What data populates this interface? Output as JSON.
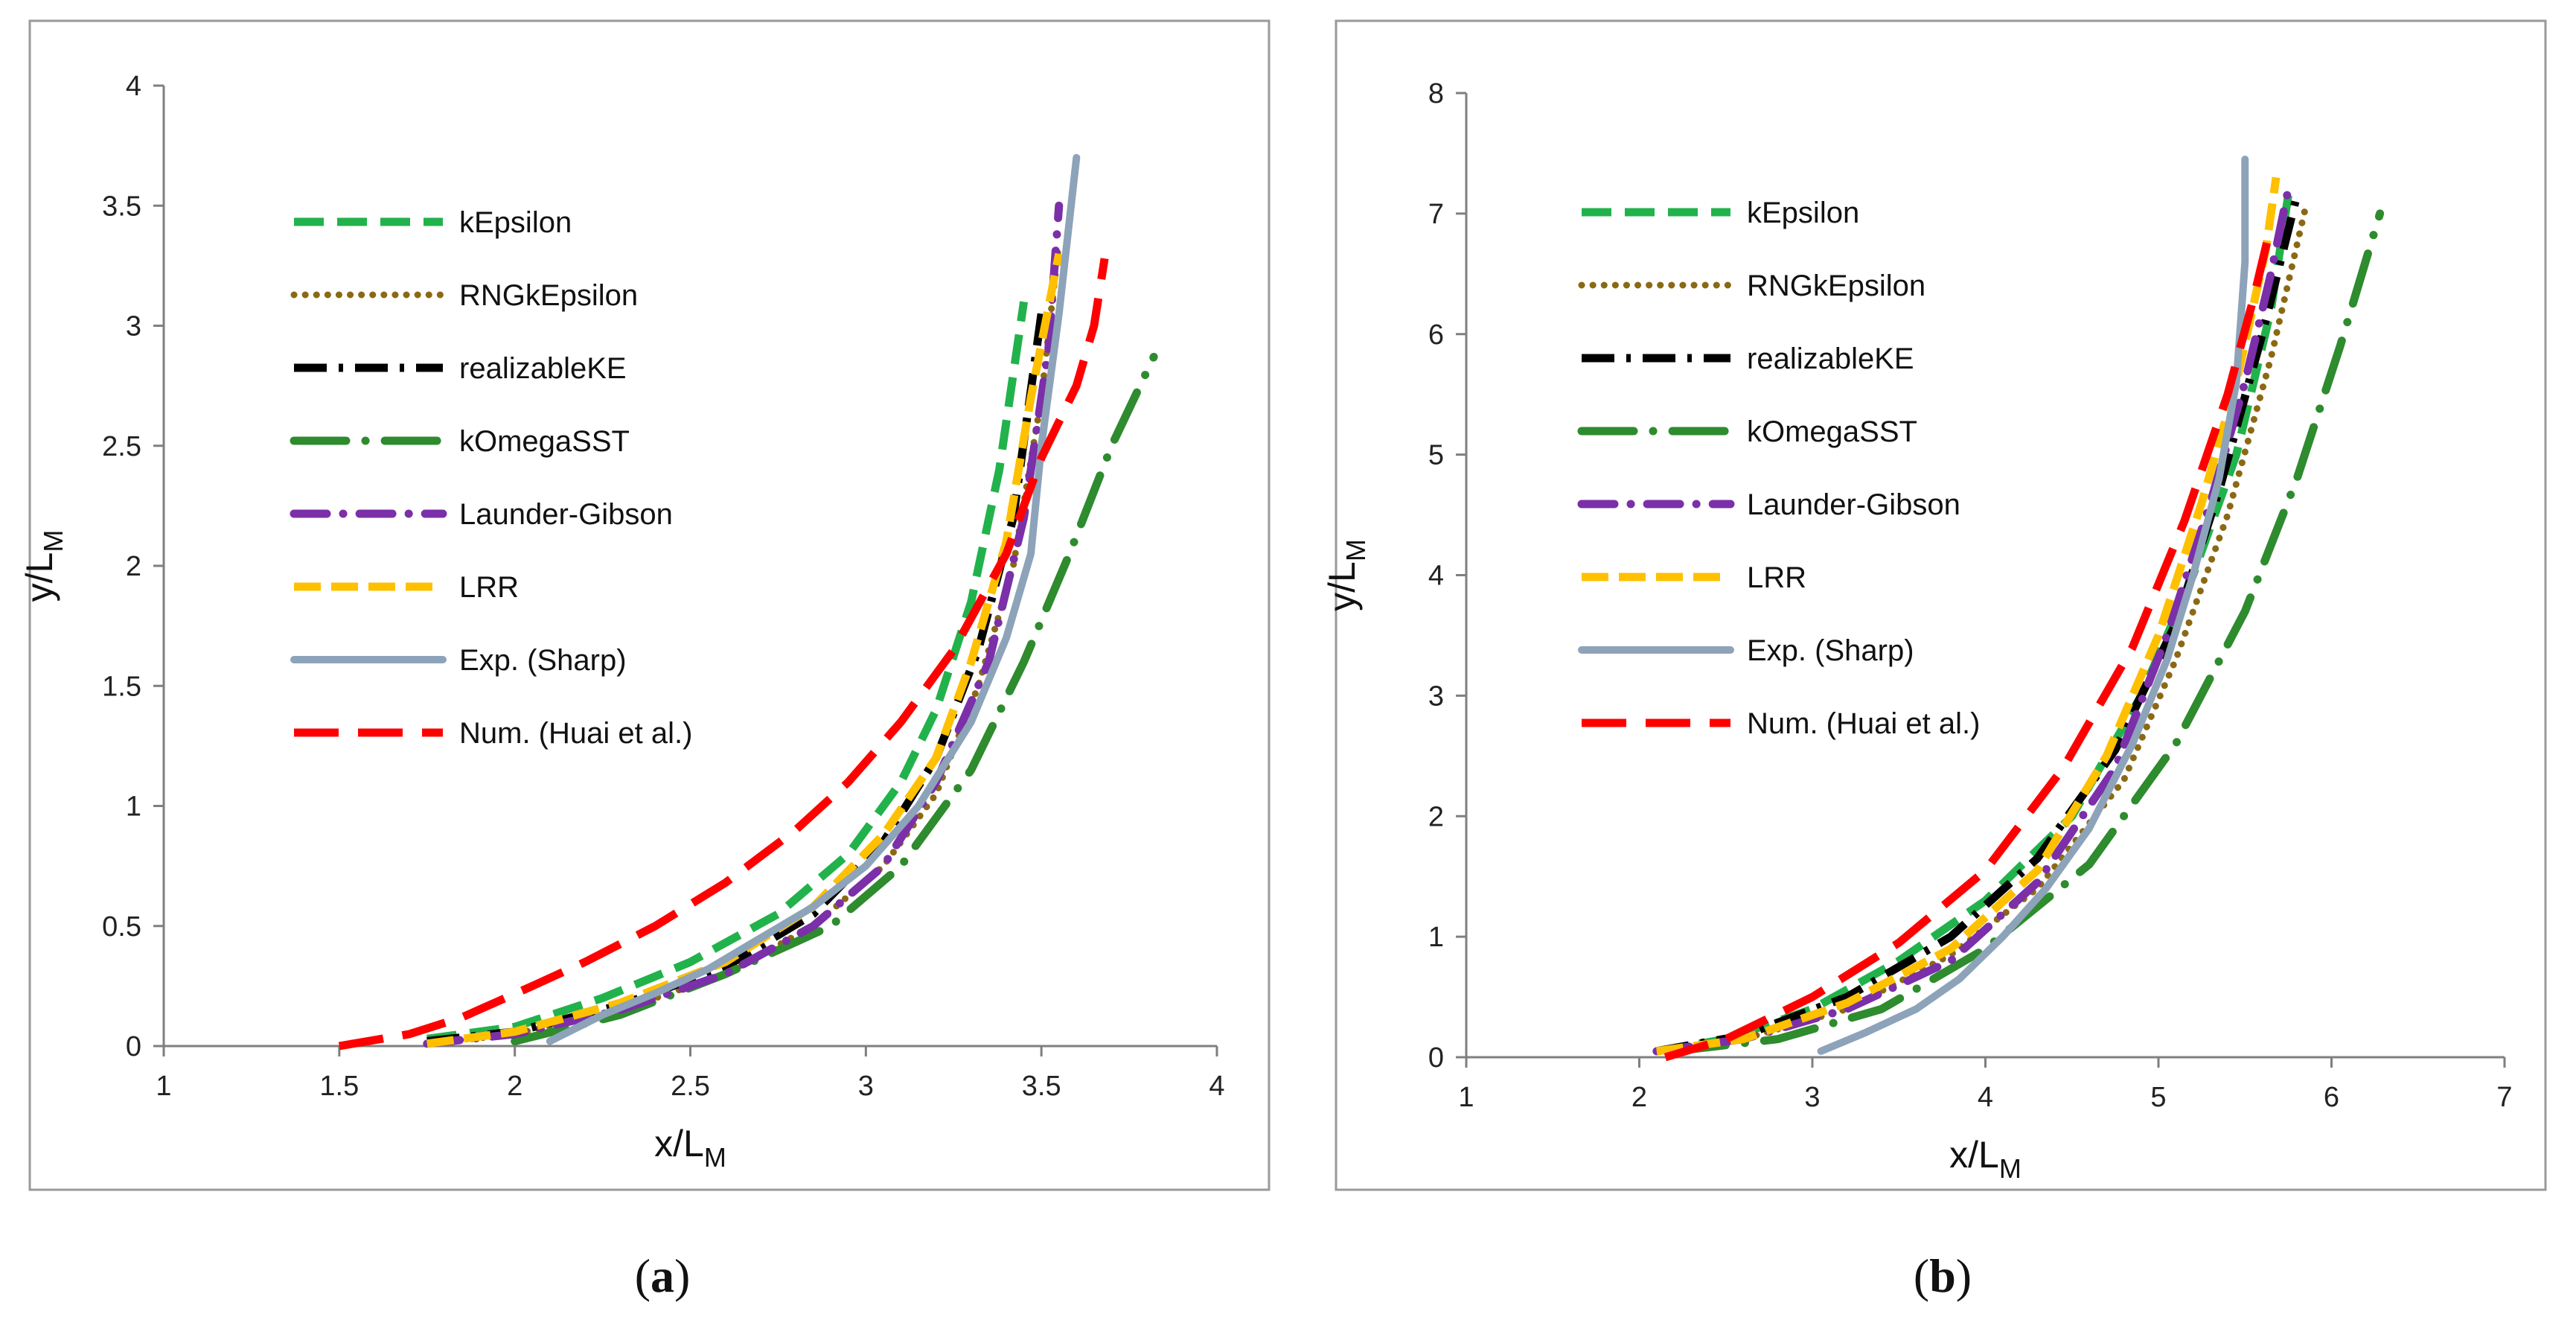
{
  "chart_data": [
    {
      "type": "line",
      "panel": "a",
      "caption_open": "(",
      "caption_letter": "a",
      "caption_close": ")",
      "xlabel_main": "x/L",
      "xlabel_sub": "M",
      "ylabel_main": "y/L",
      "ylabel_sub": "M",
      "xlim": [
        1,
        4
      ],
      "ylim": [
        0,
        4
      ],
      "xticks": [
        "1",
        "1.5",
        "2",
        "2.5",
        "3",
        "3.5",
        "4"
      ],
      "yticks": [
        "0",
        "0.5",
        "1",
        "1.5",
        "2",
        "2.5",
        "3",
        "3.5",
        "4"
      ],
      "legend_position": "top-left",
      "series": [
        {
          "name": "kEpsilon",
          "color": "#22b24c",
          "x": [
            1.75,
            2.0,
            2.25,
            2.5,
            2.75,
            2.95,
            3.1,
            3.2,
            3.3,
            3.38,
            3.45
          ],
          "y": [
            0.03,
            0.08,
            0.2,
            0.35,
            0.55,
            0.8,
            1.1,
            1.4,
            1.85,
            2.4,
            3.1
          ]
        },
        {
          "name": "RNGkEpsilon",
          "color": "#8b6914",
          "x": [
            1.75,
            2.0,
            2.3,
            2.6,
            2.85,
            3.05,
            3.2,
            3.32,
            3.42,
            3.5,
            3.55
          ],
          "y": [
            0.01,
            0.05,
            0.15,
            0.3,
            0.5,
            0.75,
            1.05,
            1.5,
            2.0,
            2.7,
            3.35
          ]
        },
        {
          "name": "realizableKE",
          "color": "#000000",
          "x": [
            1.75,
            2.0,
            2.3,
            2.6,
            2.85,
            3.05,
            3.2,
            3.32,
            3.42,
            3.5
          ],
          "y": [
            0.02,
            0.06,
            0.17,
            0.33,
            0.55,
            0.85,
            1.2,
            1.65,
            2.2,
            3.05
          ]
        },
        {
          "name": "kOmegaSST",
          "color": "#2e8b2e",
          "x": [
            2.0,
            2.3,
            2.6,
            2.9,
            3.1,
            3.3,
            3.45,
            3.58,
            3.7,
            3.82
          ],
          "y": [
            0.02,
            0.13,
            0.3,
            0.5,
            0.75,
            1.15,
            1.6,
            2.05,
            2.5,
            2.87
          ]
        },
        {
          "name": "Launder-Gibson",
          "color": "#7b2fa8",
          "x": [
            1.75,
            2.0,
            2.3,
            2.6,
            2.85,
            3.05,
            3.2,
            3.35,
            3.45,
            3.52,
            3.55
          ],
          "y": [
            0.01,
            0.05,
            0.15,
            0.3,
            0.5,
            0.75,
            1.1,
            1.6,
            2.2,
            2.9,
            3.5
          ]
        },
        {
          "name": "LRR",
          "color": "#ffc000",
          "x": [
            1.75,
            2.0,
            2.3,
            2.6,
            2.85,
            3.05,
            3.2,
            3.3,
            3.4,
            3.47,
            3.55
          ],
          "y": [
            0.01,
            0.06,
            0.18,
            0.35,
            0.58,
            0.88,
            1.2,
            1.6,
            2.1,
            2.7,
            3.3
          ]
        },
        {
          "name": "Exp. (Sharp)",
          "color": "#8da3b9",
          "x": [
            2.1,
            2.25,
            2.4,
            2.55,
            2.7,
            2.85,
            3.0,
            3.15,
            3.3,
            3.4,
            3.47,
            3.5,
            3.55,
            3.6
          ],
          "y": [
            0.02,
            0.13,
            0.22,
            0.32,
            0.45,
            0.58,
            0.75,
            1.0,
            1.35,
            1.7,
            2.05,
            2.5,
            3.05,
            3.7
          ]
        },
        {
          "name": "Num. (Huai et al.)",
          "color": "#ff0000",
          "x": [
            1.5,
            1.7,
            1.85,
            2.05,
            2.2,
            2.4,
            2.6,
            2.8,
            2.95,
            3.1,
            3.25,
            3.4,
            3.5,
            3.6,
            3.65,
            3.68
          ],
          "y": [
            0.0,
            0.05,
            0.12,
            0.25,
            0.35,
            0.5,
            0.68,
            0.9,
            1.1,
            1.35,
            1.65,
            2.05,
            2.45,
            2.75,
            3.0,
            3.28
          ]
        }
      ]
    },
    {
      "type": "line",
      "panel": "b",
      "caption_open": "(",
      "caption_letter": "b",
      "caption_close": ")",
      "xlabel_main": "x/L",
      "xlabel_sub": "M",
      "ylabel_main": "y/L",
      "ylabel_sub": "M",
      "xlim": [
        1,
        7
      ],
      "ylim": [
        0,
        8
      ],
      "xticks": [
        "1",
        "2",
        "3",
        "4",
        "5",
        "6",
        "7"
      ],
      "yticks": [
        "0",
        "1",
        "2",
        "3",
        "4",
        "5",
        "6",
        "7",
        "8"
      ],
      "legend_position": "top-left",
      "series": [
        {
          "name": "kEpsilon",
          "color": "#22b24c",
          "x": [
            2.1,
            2.5,
            3.0,
            3.5,
            4.0,
            4.5,
            4.9,
            5.2,
            5.45,
            5.65,
            5.75
          ],
          "y": [
            0.05,
            0.15,
            0.4,
            0.8,
            1.3,
            2.0,
            3.0,
            4.0,
            5.0,
            6.2,
            7.15
          ]
        },
        {
          "name": "RNGkEpsilon",
          "color": "#8b6914",
          "x": [
            2.1,
            2.6,
            3.2,
            3.8,
            4.3,
            4.8,
            5.1,
            5.4,
            5.65,
            5.85
          ],
          "y": [
            0.05,
            0.15,
            0.4,
            0.85,
            1.4,
            2.3,
            3.3,
            4.5,
            5.8,
            7.05
          ]
        },
        {
          "name": "realizableKE",
          "color": "#000000",
          "x": [
            2.1,
            2.6,
            3.2,
            3.8,
            4.3,
            4.75,
            5.1,
            5.35,
            5.6,
            5.8
          ],
          "y": [
            0.05,
            0.18,
            0.5,
            1.0,
            1.65,
            2.55,
            3.6,
            4.7,
            6.0,
            7.15
          ]
        },
        {
          "name": "kOmegaSST",
          "color": "#2e8b2e",
          "x": [
            2.2,
            2.8,
            3.4,
            4.0,
            4.6,
            5.1,
            5.5,
            5.8,
            6.05,
            6.28
          ],
          "y": [
            0.05,
            0.15,
            0.4,
            0.9,
            1.6,
            2.6,
            3.7,
            4.8,
            5.9,
            7.0
          ]
        },
        {
          "name": "Launder-Gibson",
          "color": "#7b2fa8",
          "x": [
            2.1,
            2.6,
            3.2,
            3.8,
            4.3,
            4.75,
            5.05,
            5.3,
            5.5,
            5.65,
            5.75
          ],
          "y": [
            0.05,
            0.15,
            0.4,
            0.8,
            1.45,
            2.4,
            3.5,
            4.6,
            5.6,
            6.5,
            7.2
          ]
        },
        {
          "name": "LRR",
          "color": "#ffc000",
          "x": [
            2.1,
            2.6,
            3.2,
            3.8,
            4.3,
            4.7,
            5.0,
            5.25,
            5.45,
            5.62,
            5.68
          ],
          "y": [
            0.05,
            0.15,
            0.45,
            0.9,
            1.55,
            2.5,
            3.5,
            4.6,
            5.6,
            6.7,
            7.3
          ]
        },
        {
          "name": "Exp. (Sharp)",
          "color": "#8da3b9",
          "x": [
            3.05,
            3.3,
            3.6,
            3.85,
            4.1,
            4.35,
            4.6,
            4.85,
            5.05,
            5.2,
            5.35,
            5.45,
            5.5,
            5.5
          ],
          "y": [
            0.05,
            0.2,
            0.4,
            0.65,
            1.0,
            1.4,
            1.9,
            2.6,
            3.3,
            4.0,
            4.8,
            5.6,
            6.6,
            7.45
          ]
        },
        {
          "name": "Num. (Huai et al.)",
          "color": "#ff0000",
          "x": [
            2.15,
            2.5,
            3.0,
            3.5,
            4.0,
            4.45,
            4.85,
            5.15,
            5.4,
            5.55,
            5.65
          ],
          "y": [
            0.0,
            0.15,
            0.5,
            0.95,
            1.55,
            2.4,
            3.4,
            4.45,
            5.5,
            6.3,
            6.9
          ]
        }
      ]
    }
  ]
}
